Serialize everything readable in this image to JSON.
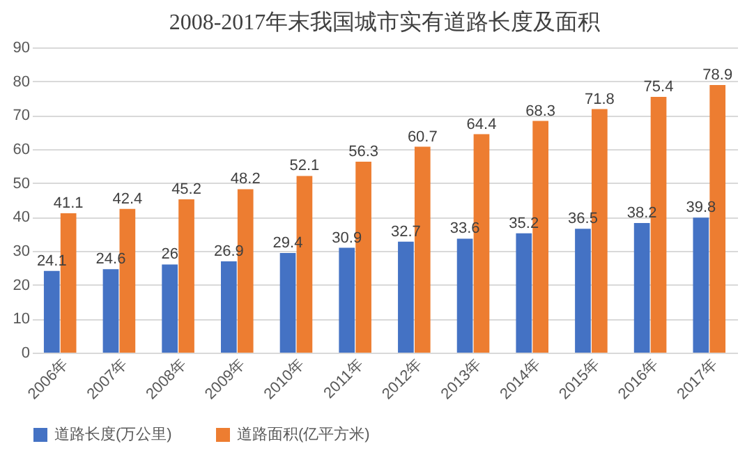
{
  "chart_data": {
    "type": "bar",
    "title": "2008-2017年末我国城市实有道路长度及面积",
    "categories": [
      "2006年",
      "2007年",
      "2008年",
      "2009年",
      "2010年",
      "2011年",
      "2012年",
      "2013年",
      "2014年",
      "2015年",
      "2016年",
      "2017年"
    ],
    "series": [
      {
        "name": "道路长度(万公里)",
        "color": "#4472c4",
        "values": [
          24.1,
          24.6,
          26,
          26.9,
          29.4,
          30.9,
          32.7,
          33.6,
          35.2,
          36.5,
          38.2,
          39.8
        ]
      },
      {
        "name": "道路面积(亿平方米)",
        "color": "#ed7d31",
        "values": [
          41.1,
          42.4,
          45.2,
          48.2,
          52.1,
          56.3,
          60.7,
          64.4,
          68.3,
          71.8,
          75.4,
          78.9
        ]
      }
    ],
    "ylim": [
      0,
      90
    ],
    "yticks": [
      0,
      10,
      20,
      30,
      40,
      50,
      60,
      70,
      80,
      90
    ],
    "grid": "y",
    "legend": "bottom",
    "data_labels": true
  }
}
